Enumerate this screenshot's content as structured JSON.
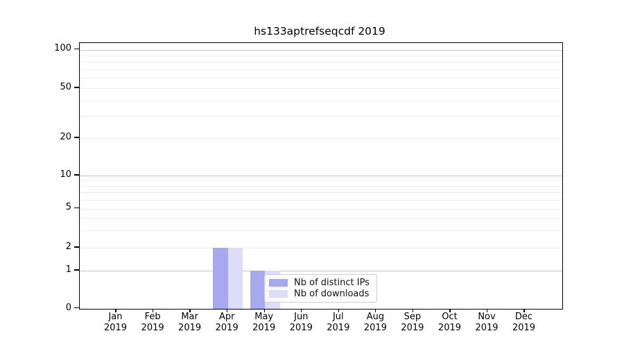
{
  "figure": {
    "title": "hs133aptrefseqcdf 2019"
  },
  "yaxis": {
    "tick_labels": [
      "100",
      "50",
      "20",
      "10",
      "5",
      "2",
      "1",
      "0"
    ]
  },
  "xaxis": {
    "months": [
      "Jan",
      "Feb",
      "Mar",
      "Apr",
      "May",
      "Jun",
      "Jul",
      "Aug",
      "Sep",
      "Oct",
      "Nov",
      "Dec"
    ],
    "year": "2019"
  },
  "legend": {
    "items": [
      {
        "label": "Nb of distinct IPs",
        "color": "#a8a8f1"
      },
      {
        "label": "Nb of downloads",
        "color": "#ddddf9"
      }
    ]
  },
  "chart_data": {
    "type": "bar",
    "title": "hs133aptrefseqcdf 2019",
    "categories": [
      "Jan 2019",
      "Feb 2019",
      "Mar 2019",
      "Apr 2019",
      "May 2019",
      "Jun 2019",
      "Jul 2019",
      "Aug 2019",
      "Sep 2019",
      "Oct 2019",
      "Nov 2019",
      "Dec 2019"
    ],
    "series": [
      {
        "name": "Nb of distinct IPs",
        "color": "#a8a8f1",
        "values": [
          0,
          0,
          0,
          2,
          1,
          0,
          0,
          0,
          0,
          0,
          0,
          0
        ]
      },
      {
        "name": "Nb of downloads",
        "color": "#ddddf9",
        "values": [
          0,
          0,
          0,
          2,
          1,
          0,
          0,
          0,
          0,
          0,
          0,
          0
        ]
      }
    ],
    "yscale": "symlog",
    "yticks": [
      0,
      1,
      2,
      5,
      10,
      20,
      50,
      100
    ],
    "minor_yticks": [
      2,
      3,
      4,
      5,
      6,
      7,
      8,
      9,
      20,
      30,
      40,
      50,
      60,
      70,
      80,
      90
    ],
    "major_grid_yticks": [
      1,
      10,
      100
    ],
    "ylim": [
      0,
      113
    ],
    "xlabel": "",
    "ylabel": "",
    "grid": "horizontal",
    "legend_position": "inside-lower-center-right"
  }
}
